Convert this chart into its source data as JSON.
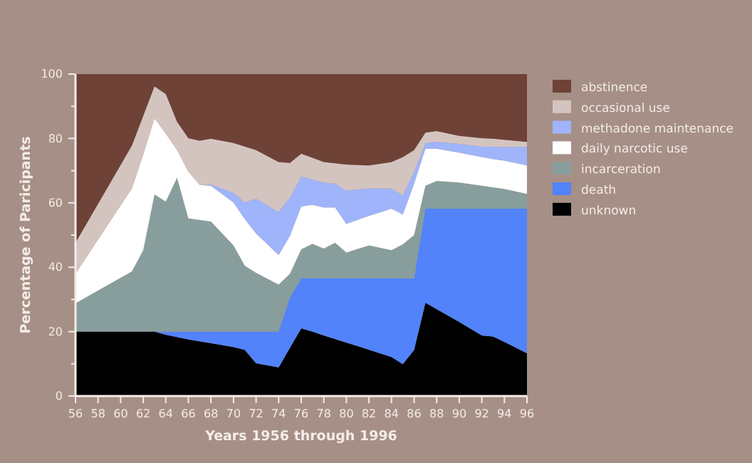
{
  "chart_data": {
    "type": "area",
    "stacked": true,
    "xlabel": "Years 1956 through 1996",
    "ylabel": "Percentage of Paricipants",
    "x": [
      56,
      61,
      62,
      63,
      64,
      65,
      66,
      67,
      68,
      70,
      71,
      72,
      74,
      75,
      76,
      77,
      78,
      79,
      80,
      82,
      84,
      85,
      86,
      87,
      88,
      90,
      92,
      93,
      94,
      96
    ],
    "xlim": [
      56,
      96
    ],
    "xticks": [
      56,
      58,
      60,
      62,
      64,
      66,
      68,
      70,
      72,
      74,
      76,
      78,
      80,
      82,
      84,
      86,
      88,
      90,
      92,
      94,
      96
    ],
    "ylim": [
      0,
      100
    ],
    "yticks": [
      0,
      {
        "value": 10,
        "label": null
      },
      20,
      {
        "value": 30,
        "label": null
      },
      40,
      {
        "value": 50,
        "label": null
      },
      60,
      {
        "value": 70,
        "label": null
      },
      80,
      {
        "value": 90,
        "label": null
      },
      100
    ],
    "grid": false,
    "legend": "right",
    "series": [
      {
        "name": "unknown",
        "color": "#000000",
        "values": [
          20,
          20,
          20,
          20,
          19,
          18.3,
          17.6,
          17,
          16.4,
          15.2,
          14.3,
          10.2,
          8.9,
          15,
          21,
          20,
          18.8,
          17.7,
          16.6,
          14.4,
          12.1,
          9.9,
          14.3,
          29,
          27,
          23,
          18.8,
          18.5,
          16.8,
          13.3
        ]
      },
      {
        "name": "death",
        "color": "#5283fa",
        "values": [
          0,
          0,
          0,
          0,
          1,
          1.7,
          2.4,
          3,
          3.6,
          4.8,
          5.7,
          9.8,
          11.1,
          15.6,
          15.5,
          16.5,
          17.7,
          18.8,
          19.9,
          22.1,
          24.4,
          26.6,
          22.2,
          29.2,
          31.2,
          35.2,
          39.4,
          39.7,
          41.4,
          44.9
        ]
      },
      {
        "name": "incarceration",
        "color": "#879e9c",
        "values": [
          8.8,
          18.7,
          25.3,
          42.6,
          40.4,
          47.8,
          35.2,
          34.7,
          34.2,
          26.8,
          20.5,
          18.3,
          14.6,
          7.4,
          9.1,
          10.8,
          9.3,
          11.1,
          8.1,
          10.3,
          8.8,
          10.6,
          13.5,
          7.1,
          8.6,
          8.1,
          7.1,
          6.6,
          6.1,
          4.6
        ]
      },
      {
        "name": "daily narcotic use",
        "color": "#ffffff",
        "values": [
          9.2,
          25.8,
          29.7,
          23.7,
          21.1,
          8.6,
          14.5,
          10.9,
          11.1,
          13.3,
          14.5,
          12.2,
          9.2,
          11.8,
          13.3,
          12.1,
          12.8,
          11,
          8.9,
          9.2,
          12.9,
          9.3,
          16,
          11.5,
          10,
          9.3,
          8.9,
          8.8,
          8.8,
          8.8
        ]
      },
      {
        "name": "methadone maintenance",
        "color": "#9fb4fa",
        "values": [
          0,
          0,
          0,
          0,
          0,
          0,
          0,
          0,
          0.4,
          3,
          5.1,
          10.8,
          13.4,
          11.8,
          9.3,
          7.8,
          7.7,
          7.4,
          10.3,
          8.5,
          6.3,
          5.9,
          3.7,
          1.8,
          2.2,
          2.7,
          3.3,
          3.8,
          4.3,
          5.8
        ]
      },
      {
        "name": "occasional use",
        "color": "#d4c4c0",
        "values": [
          9.6,
          13.3,
          12,
          9.9,
          12.3,
          8.8,
          10.4,
          13.7,
          14.2,
          15.5,
          17.4,
          15.1,
          15.5,
          10.8,
          7.1,
          6.8,
          6.4,
          6.3,
          8.1,
          7.1,
          8.2,
          11.9,
          6.7,
          3.2,
          3.3,
          2.5,
          2.6,
          2.5,
          2.2,
          1.5
        ]
      },
      {
        "name": "abstinence",
        "color": "#6e4237",
        "values": [
          52.4,
          22.2,
          13,
          3.8,
          6.2,
          14.8,
          19.9,
          20.7,
          20.1,
          21.4,
          22.5,
          23.6,
          27.3,
          27.6,
          24.7,
          26,
          27.3,
          27.7,
          28.1,
          28.4,
          27.3,
          25.8,
          23.6,
          18.2,
          17.7,
          19.2,
          19.9,
          20.1,
          20.4,
          21.1
        ]
      }
    ]
  }
}
